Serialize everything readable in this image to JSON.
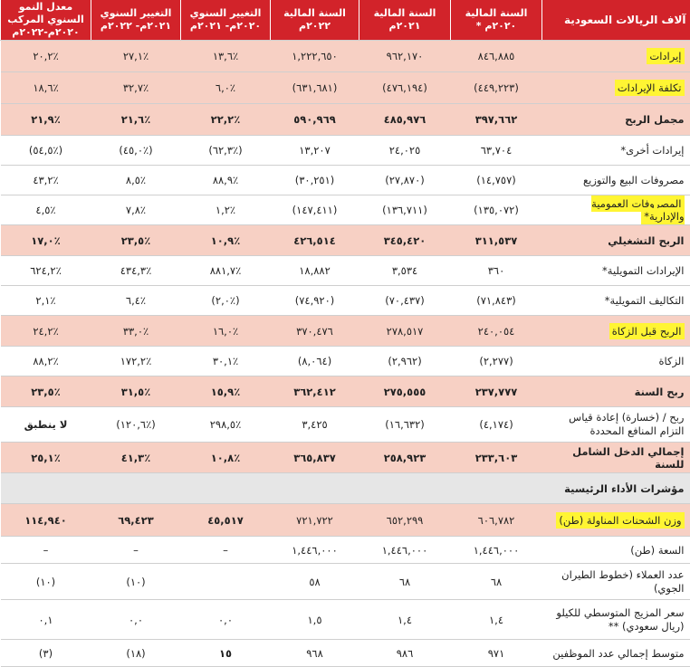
{
  "table": {
    "headers": [
      "آلاف الريالات السعودية",
      "السنة المالية ٢٠٢٠م *",
      "السنة المالية ٢٠٢١م",
      "السنة المالية ٢٠٢٢م",
      "التغيير السنوي ٢٠٢٠م- ٢٠٢١م",
      "التغيير السنوي ٢٠٢١م- ٢٠٢٢م",
      "معدل النمو السنوي المركب ٢٠٢٠م-٢٠٢٢م"
    ],
    "rows": [
      {
        "label": "إيرادات",
        "cells": [
          "٨٤٦,٨٨٥",
          "٩٦٢,١٧٠",
          "١,٢٢٢,٦٥٠",
          "١٣,٦٪",
          "٢٧,١٪",
          "٢٠,٢٪"
        ]
      },
      {
        "label": "تكلفة الإيرادات",
        "cells": [
          "(٤٤٩,٢٢٣)",
          "(٤٧٦,١٩٤)",
          "(٦٣١,٦٨١)",
          "٦,٠٪",
          "٣٢,٧٪",
          "١٨,٦٪"
        ]
      },
      {
        "label": "مجمل الربح",
        "cells": [
          "٣٩٧,٦٦٢",
          "٤٨٥,٩٧٦",
          "٥٩٠,٩٦٩",
          "٢٢,٢٪",
          "٢١,٦٪",
          "٢١,٩٪"
        ]
      },
      {
        "label": "إيرادات أخرى*",
        "cells": [
          "٦٣,٧٠٤",
          "٢٤,٠٢٥",
          "١٣,٢٠٧",
          "(٦٢,٣٪)",
          "(٤٥,٠٪)",
          "(٥٤,٥٪)"
        ]
      },
      {
        "label": "مصروفات البيع والتوزيع",
        "cells": [
          "(١٤,٧٥٧)",
          "(٢٧,٨٧٠)",
          "(٣٠,٢٥١)",
          "٨٨,٩٪",
          "٨,٥٪",
          "٤٣,٢٪"
        ]
      },
      {
        "label": "المصروفات العمومية والإدارية*",
        "cells": [
          "(١٣٥,٠٧٢)",
          "(١٣٦,٧١١)",
          "(١٤٧,٤١١)",
          "١,٢٪",
          "٧,٨٪",
          "٤,٥٪"
        ]
      },
      {
        "label": "الربح التشغيلي",
        "cells": [
          "٣١١,٥٣٧",
          "٣٤٥,٤٢٠",
          "٤٢٦,٥١٤",
          "١٠,٩٪",
          "٢٣,٥٪",
          "١٧,٠٪"
        ]
      },
      {
        "label": "الإيرادات التمويلية*",
        "cells": [
          "٣٦٠",
          "٣,٥٣٤",
          "١٨,٨٨٢",
          "٨٨١,٧٪",
          "٤٣٤,٣٪",
          "٦٢٤,٢٪"
        ]
      },
      {
        "label": "التكاليف التمويلية*",
        "cells": [
          "(٧١,٨٤٣)",
          "(٧٠,٤٣٧)",
          "(٧٤,٩٢٠)",
          "(٢,٠٪)",
          "٦,٤٪",
          "٢,١٪"
        ]
      },
      {
        "label": "الربح قبل الزكاة",
        "cells": [
          "٢٤٠,٠٥٤",
          "٢٧٨,٥١٧",
          "٣٧٠,٤٧٦",
          "١٦,٠٪",
          "٣٣,٠٪",
          "٢٤,٢٪"
        ]
      },
      {
        "label": "الزكاة",
        "cells": [
          "(٢,٢٧٧)",
          "(٢,٩٦٢)",
          "(٨,٠٦٤)",
          "٣٠,١٪",
          "١٧٢,٢٪",
          "٨٨,٢٪"
        ]
      },
      {
        "label": "ربح السنة",
        "cells": [
          "٢٣٧,٧٧٧",
          "٢٧٥,٥٥٥",
          "٣٦٢,٤١٢",
          "١٥,٩٪",
          "٣١,٥٪",
          "٢٣,٥٪"
        ]
      },
      {
        "label": "ربح / (خسارة) إعادة قياس التزام المنافع المحددة",
        "cells": [
          "(٤,١٧٤)",
          "(١٦,٦٣٢)",
          "٣,٤٢٥",
          "٢٩٨,٥٪",
          "(١٢٠,٦٪)",
          "لا ينطبق"
        ]
      },
      {
        "label": "إجمالي الدخل الشامل للسنة",
        "cells": [
          "٢٣٣,٦٠٣",
          "٢٥٨,٩٢٣",
          "٣٦٥,٨٣٧",
          "١٠,٨٪",
          "٤١,٣٪",
          "٢٥,١٪"
        ]
      },
      {
        "label": "مؤشرات الأداء الرئيسية",
        "cells": [
          "",
          "",
          "",
          "",
          "",
          ""
        ]
      },
      {
        "label": "وزن الشحنات المناولة (طن)",
        "cells": [
          "٦٠٦,٧٨٢",
          "٦٥٢,٢٩٩",
          "٧٢١,٧٢٢",
          "٤٥,٥١٧",
          "٦٩,٤٢٣",
          "١١٤,٩٤٠"
        ]
      },
      {
        "label": "السعة (طن)",
        "cells": [
          "١,٤٤٦,٠٠٠",
          "١,٤٤٦,٠٠٠",
          "١,٤٤٦,٠٠٠",
          "–",
          "–",
          "–"
        ]
      },
      {
        "label": "عدد العملاء (خطوط الطيران الجوي)",
        "cells": [
          "٦٨",
          "٦٨",
          "٥٨",
          "",
          "(١٠)",
          "(١٠)"
        ]
      },
      {
        "label": "سعر المزيج المتوسطي للكيلو (ريال سعودي) **",
        "cells": [
          "١,٤",
          "١,٤",
          "١,٥",
          "٠,٠",
          "٠,٠",
          "٠,١"
        ]
      },
      {
        "label": "متوسط إجمالي عدد الموظفين",
        "cells": [
          "٩٧١",
          "٩٨٦",
          "٩٦٨",
          "١٥",
          "(١٨)",
          "(٣)"
        ]
      }
    ]
  }
}
